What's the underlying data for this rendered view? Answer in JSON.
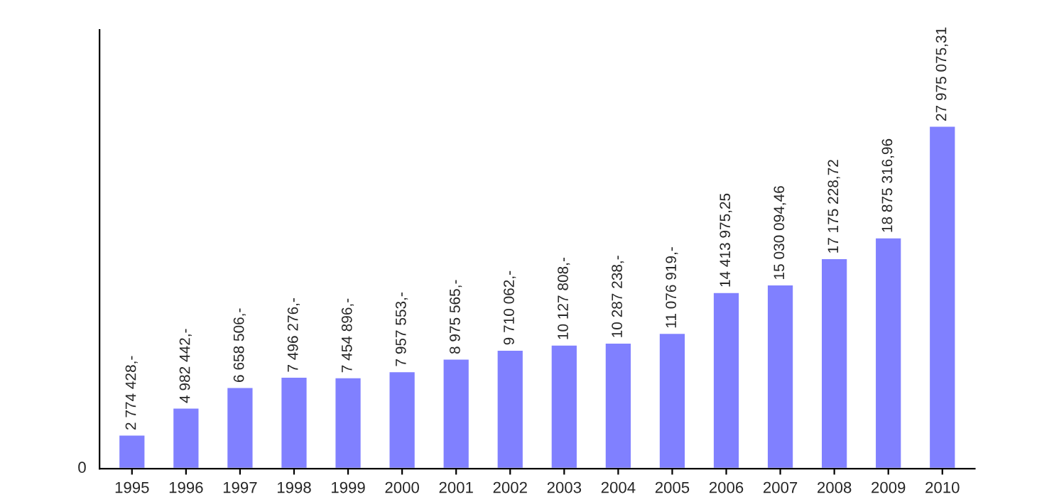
{
  "chart_data": {
    "type": "bar",
    "categories": [
      "1995",
      "1996",
      "1997",
      "1998",
      "1999",
      "2000",
      "2001",
      "2002",
      "2003",
      "2004",
      "2005",
      "2006",
      "2007",
      "2008",
      "2009",
      "2010"
    ],
    "values": [
      2774428,
      4982442,
      6658506,
      7496276,
      7454896,
      7957553,
      8975565,
      9710062,
      10127808,
      10287238,
      11076919,
      14413975.25,
      15030094.46,
      17175228.72,
      18875316.96,
      27975075.31
    ],
    "value_labels": [
      "2 774 428,-",
      "4 982 442,-",
      "6 658 506,-",
      "7 496 276,-",
      "7 454 896,-",
      "7 957 553,-",
      "8 975 565,-",
      "9 710 062,-",
      "10 127 808,-",
      "10 287 238,-",
      "11 076 919,-",
      "14 413 975,25",
      "15 030 094,46",
      "17 175 228,72",
      "18 875 316,96",
      "27 975 075,31"
    ],
    "color": "#8080ff",
    "annotations": [
      "0"
    ],
    "grid": false,
    "legend": false
  }
}
